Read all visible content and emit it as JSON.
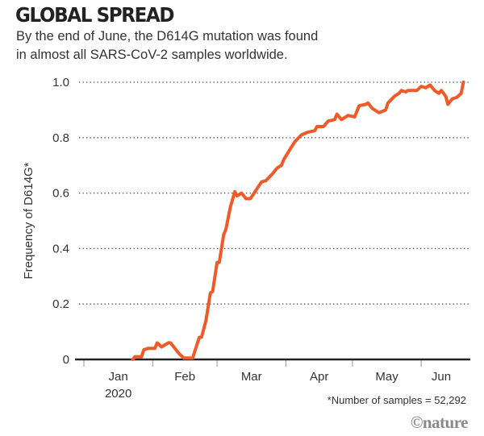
{
  "header": {
    "title": "GLOBAL SPREAD",
    "subtitle_line1": "By the end of June, the D614G mutation was found",
    "subtitle_line2": "in almost all SARS-CoV-2 samples worldwide."
  },
  "footnote": "*Number of samples = 52,292",
  "logo": "©nature",
  "chart_data": {
    "type": "line",
    "title": "GLOBAL SPREAD",
    "ylabel": "Frequency of D614G*",
    "xlabel": "",
    "ylim": [
      0,
      1.0
    ],
    "xlim": [
      "2019-12-28",
      "2020-06-22"
    ],
    "yticks": [
      0,
      0.2,
      0.4,
      0.6,
      0.8,
      1.0
    ],
    "ytick_labels": [
      "0",
      "0.2",
      "0.4",
      "0.6",
      "0.8",
      "1.0"
    ],
    "xtick_dates": [
      "2020-01-01",
      "2020-02-01",
      "2020-03-01",
      "2020-04-01",
      "2020-05-01",
      "2020-06-01"
    ],
    "xtick_labels": [
      "Jan",
      "Feb",
      "Mar",
      "Apr",
      "May",
      "Jun"
    ],
    "xtick_year": "2020",
    "grid": "horizontal dotted",
    "line_color": "#f05a28",
    "x": [
      "2020-01-23",
      "2020-01-24",
      "2020-01-27",
      "2020-01-28",
      "2020-01-30",
      "2020-02-02",
      "2020-02-03",
      "2020-02-05",
      "2020-02-08",
      "2020-02-09",
      "2020-02-11",
      "2020-02-13",
      "2020-02-15",
      "2020-02-19",
      "2020-02-22",
      "2020-02-23",
      "2020-02-25",
      "2020-02-27",
      "2020-02-28",
      "2020-03-01",
      "2020-03-02",
      "2020-03-04",
      "2020-03-05",
      "2020-03-07",
      "2020-03-09",
      "2020-03-10",
      "2020-03-12",
      "2020-03-14",
      "2020-03-16",
      "2020-03-21",
      "2020-03-23",
      "2020-03-26",
      "2020-03-28",
      "2020-03-30",
      "2020-03-31",
      "2020-04-03",
      "2020-04-05",
      "2020-04-08",
      "2020-04-11",
      "2020-04-14",
      "2020-04-15",
      "2020-04-18",
      "2020-04-20",
      "2020-04-23",
      "2020-04-24",
      "2020-04-26",
      "2020-04-29",
      "2020-05-02",
      "2020-05-04",
      "2020-05-07",
      "2020-05-08",
      "2020-05-10",
      "2020-05-13",
      "2020-05-16",
      "2020-05-17",
      "2020-05-20",
      "2020-05-22",
      "2020-05-23",
      "2020-05-25",
      "2020-05-26",
      "2020-05-30",
      "2020-06-01",
      "2020-06-03",
      "2020-06-05",
      "2020-06-07",
      "2020-06-09",
      "2020-06-10",
      "2020-06-12",
      "2020-06-13",
      "2020-06-15",
      "2020-06-17",
      "2020-06-19",
      "2020-06-20"
    ],
    "y": [
      0,
      0.01,
      0.01,
      0.035,
      0.04,
      0.04,
      0.06,
      0.045,
      0.06,
      0.06,
      0.04,
      0.02,
      0.005,
      0.005,
      0.08,
      0.08,
      0.14,
      0.24,
      0.245,
      0.35,
      0.35,
      0.45,
      0.47,
      0.55,
      0.605,
      0.59,
      0.6,
      0.58,
      0.58,
      0.64,
      0.645,
      0.67,
      0.69,
      0.7,
      0.72,
      0.76,
      0.785,
      0.81,
      0.82,
      0.825,
      0.84,
      0.84,
      0.86,
      0.865,
      0.885,
      0.865,
      0.88,
      0.875,
      0.915,
      0.92,
      0.925,
      0.905,
      0.89,
      0.9,
      0.925,
      0.95,
      0.96,
      0.97,
      0.965,
      0.97,
      0.97,
      0.985,
      0.98,
      0.99,
      0.97,
      0.96,
      0.97,
      0.95,
      0.92,
      0.94,
      0.945,
      0.96,
      1.0
    ]
  }
}
